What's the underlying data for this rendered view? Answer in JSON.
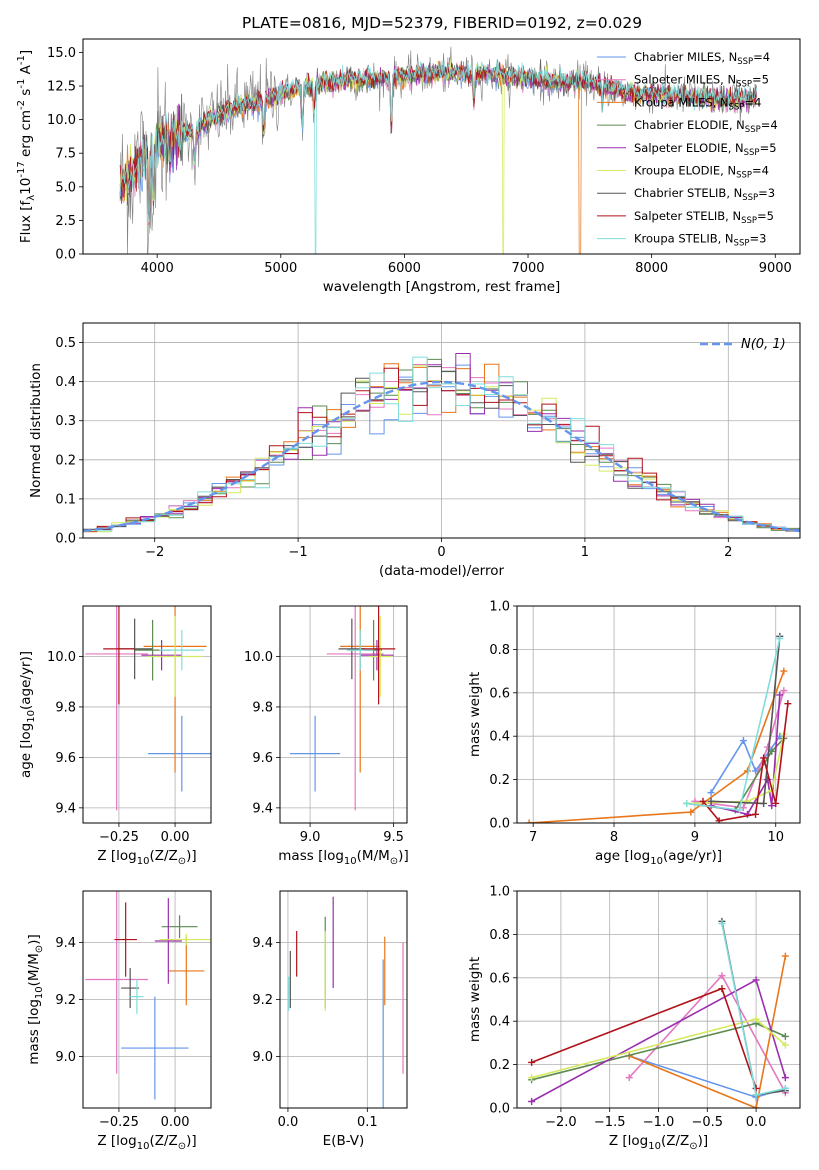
{
  "figure": {
    "title": "PLATE=0816, MJD=52379, FIBERID=0192, z=0.029",
    "models": [
      {
        "name": "Chabrier MILES, N$_{SSP}$=4",
        "label": "Chabrier MILES, N",
        "nssp": "=4",
        "color": "#6495ed"
      },
      {
        "name": "Salpeter MILES, N$_{SSP}$=5",
        "label": "Salpeter MILES, N",
        "nssp": "=5",
        "color": "#e377c2"
      },
      {
        "name": "Kroupa MILES, N$_{SSP}$=4",
        "label": "Kroupa MILES, N",
        "nssp": "=4",
        "color": "#e8761a"
      },
      {
        "name": "Chabrier ELODIE, N$_{SSP}$=4",
        "label": "Chabrier ELODIE, N",
        "nssp": "=4",
        "color": "#5c8a50"
      },
      {
        "name": "Salpeter ELODIE, N$_{SSP}$=5",
        "label": "Salpeter ELODIE, N",
        "nssp": "=5",
        "color": "#9b2fae"
      },
      {
        "name": "Kroupa ELODIE, N$_{SSP}$=4",
        "label": "Kroupa ELODIE, N",
        "nssp": "=4",
        "color": "#d4ea5e"
      },
      {
        "name": "Chabrier STELIB, N$_{SSP}$=3",
        "label": "Chabrier STELIB, N",
        "nssp": "=3",
        "color": "#555555"
      },
      {
        "name": "Salpeter STELIB, N$_{SSP}$=5",
        "label": "Salpeter STELIB, N",
        "nssp": "=5",
        "color": "#b0121a"
      },
      {
        "name": "Kroupa STELIB, N$_{SSP}$=3",
        "label": "Kroupa STELIB, N",
        "nssp": "=3",
        "color": "#7fdedd"
      }
    ],
    "nssp_subscript": "SSP"
  },
  "chart_data": [
    {
      "id": "spectrum",
      "type": "line",
      "title": "PLATE=0816, MJD=52379, FIBERID=0192, z=0.029",
      "xlabel": "wavelength [Angstrom, rest frame]",
      "ylabel": "Flux [f$_\\lambda$10$^{-17}$ erg cm$^{-2}$ s$^{-1}$ A$^{-1}$]",
      "xlim": [
        3400,
        9200
      ],
      "ylim": [
        0,
        16
      ],
      "xticks": [
        4000,
        5000,
        6000,
        7000,
        8000,
        9000
      ],
      "yticks": [
        0.0,
        2.5,
        5.0,
        7.5,
        10.0,
        12.5,
        15.0
      ],
      "grid": false,
      "legend": "top-right",
      "continuum": [
        [
          3700,
          4.8
        ],
        [
          3850,
          6.8
        ],
        [
          4000,
          8.2
        ],
        [
          4150,
          8.9
        ],
        [
          4300,
          9.1
        ],
        [
          4500,
          10.4
        ],
        [
          4700,
          11.1
        ],
        [
          4900,
          11.6
        ],
        [
          5100,
          12.2
        ],
        [
          5400,
          12.8
        ],
        [
          5700,
          13.0
        ],
        [
          6000,
          13.2
        ],
        [
          6300,
          13.5
        ],
        [
          6600,
          13.4
        ],
        [
          6900,
          13.2
        ],
        [
          7200,
          12.8
        ],
        [
          7500,
          12.8
        ],
        [
          7800,
          12.0
        ],
        [
          8000,
          11.9
        ],
        [
          8300,
          11.7
        ],
        [
          8600,
          11.5
        ],
        [
          8850,
          11.6
        ]
      ],
      "sharp_drops": [
        {
          "series": "Kroupa STELIB",
          "x": 5280,
          "y": 0
        },
        {
          "series": "Kroupa ELODIE",
          "x": 6800,
          "y": 0
        },
        {
          "series": "Kroupa MILES",
          "x": 7420,
          "y": 0
        }
      ]
    },
    {
      "id": "residuals",
      "type": "bar",
      "xlabel": "(data-model)/error",
      "ylabel": "Normed distribution",
      "xlim": [
        -2.5,
        2.5
      ],
      "ylim": [
        0,
        0.55
      ],
      "xticks": [
        -2,
        -1,
        0,
        1,
        2
      ],
      "yticks": [
        0.0,
        0.1,
        0.2,
        0.3,
        0.4,
        0.5
      ],
      "grid": true,
      "bin_width": 0.1,
      "legend": "top-right",
      "reference_curve": {
        "name": "$\\mathcal{N}(0,1)$",
        "label": "N(0, 1)",
        "color": "#6495ed",
        "style": "dashed"
      }
    },
    {
      "id": "age-vs-Z",
      "type": "scatter",
      "xlabel": "Z [log$_{10}$(Z/Z$_\\odot$)]",
      "ylabel": "age  [log$_{10}$(age/yr)]",
      "xlim": [
        -0.41,
        0.16
      ],
      "ylim": [
        9.34,
        10.2
      ],
      "xticks": [
        -0.25,
        0.0
      ],
      "yticks": [
        9.4,
        9.6,
        9.8,
        10.0
      ],
      "grid": true,
      "points": [
        {
          "model": "Chabrier MILES",
          "x": 0.03,
          "y": 9.615,
          "xerr": 0.15,
          "yerr": 0.15
        },
        {
          "model": "Salpeter MILES",
          "x": -0.26,
          "y": 10.01,
          "xerr": 0.14,
          "yerr": 0.62
        },
        {
          "model": "Kroupa MILES",
          "x": 0.0,
          "y": 10.04,
          "xerr": 0.14,
          "yerr": 0.5
        },
        {
          "model": "Chabrier ELODIE",
          "x": -0.1,
          "y": 10.025,
          "xerr": 0.08,
          "yerr": 0.12
        },
        {
          "model": "Salpeter ELODIE",
          "x": -0.06,
          "y": 10.005,
          "xerr": 0.09,
          "yerr": 0.06
        },
        {
          "model": "Kroupa ELODIE",
          "x": 0.0,
          "y": 10.0,
          "xerr": 0.12,
          "yerr": 0.16
        },
        {
          "model": "Chabrier STELIB",
          "x": -0.18,
          "y": 10.03,
          "xerr": 0.08,
          "yerr": 0.12
        },
        {
          "model": "Salpeter STELIB",
          "x": -0.25,
          "y": 10.03,
          "xerr": 0.07,
          "yerr": 0.22
        },
        {
          "model": "Kroupa STELIB",
          "x": 0.03,
          "y": 10.025,
          "xerr": 0.1,
          "yerr": 0.08
        }
      ]
    },
    {
      "id": "age-vs-mass",
      "type": "scatter",
      "xlabel": "mass [log$_{10}$(M/M$_\\odot$)]",
      "ylabel": "",
      "xlim": [
        8.82,
        9.58
      ],
      "ylim": [
        9.34,
        10.2
      ],
      "xticks": [
        9.0,
        9.5
      ],
      "yticks": [
        9.4,
        9.6,
        9.8,
        10.0
      ],
      "grid": true,
      "points": [
        {
          "model": "Chabrier MILES",
          "x": 9.03,
          "y": 9.615,
          "xerr": 0.15,
          "yerr": 0.15
        },
        {
          "model": "Salpeter MILES",
          "x": 9.27,
          "y": 10.01,
          "xerr": 0.17,
          "yerr": 0.62
        },
        {
          "model": "Kroupa MILES",
          "x": 9.3,
          "y": 10.04,
          "xerr": 0.12,
          "yerr": 0.5
        },
        {
          "model": "Chabrier ELODIE",
          "x": 9.38,
          "y": 10.025,
          "xerr": 0.05,
          "yerr": 0.12
        },
        {
          "model": "Salpeter ELODIE",
          "x": 9.4,
          "y": 10.005,
          "xerr": 0.1,
          "yerr": 0.06
        },
        {
          "model": "Kroupa ELODIE",
          "x": 9.42,
          "y": 10.0,
          "xerr": 0.07,
          "yerr": 0.16
        },
        {
          "model": "Chabrier STELIB",
          "x": 9.25,
          "y": 10.03,
          "xerr": 0.08,
          "yerr": 0.12
        },
        {
          "model": "Salpeter STELIB",
          "x": 9.41,
          "y": 10.03,
          "xerr": 0.1,
          "yerr": 0.22
        },
        {
          "model": "Kroupa STELIB",
          "x": 9.3,
          "y": 10.025,
          "xerr": 0.08,
          "yerr": 0.08
        }
      ]
    },
    {
      "id": "weight-vs-age",
      "type": "line",
      "xlabel": "age  [log$_{10}$(age/yr)]",
      "ylabel": "mass weight",
      "xlim": [
        6.8,
        10.3
      ],
      "ylim": [
        0,
        1
      ],
      "xticks": [
        7,
        8,
        9,
        10
      ],
      "yticks": [
        0.0,
        0.2,
        0.4,
        0.6,
        0.8,
        1.0
      ],
      "grid": true,
      "series": [
        {
          "model": "Chabrier MILES",
          "x": [
            9.2,
            9.6,
            9.75,
            10.05
          ],
          "y": [
            0.14,
            0.38,
            0.24,
            0.4
          ]
        },
        {
          "model": "Salpeter MILES",
          "x": [
            9.0,
            9.6,
            9.9,
            10.1
          ],
          "y": [
            0.1,
            0.07,
            0.35,
            0.61
          ]
        },
        {
          "model": "Kroupa MILES",
          "x": [
            6.95,
            8.95,
            9.65,
            10.1
          ],
          "y": [
            0.0,
            0.05,
            0.24,
            0.7
          ]
        },
        {
          "model": "Chabrier ELODIE",
          "x": [
            8.9,
            9.5,
            9.95,
            10.1
          ],
          "y": [
            0.09,
            0.06,
            0.33,
            0.39
          ]
        },
        {
          "model": "Salpeter ELODIE",
          "x": [
            9.2,
            9.65,
            9.9,
            9.95,
            10.05
          ],
          "y": [
            0.08,
            0.04,
            0.2,
            0.08,
            0.59
          ]
        },
        {
          "model": "Kroupa ELODIE",
          "x": [
            8.9,
            9.65,
            9.95,
            10.1
          ],
          "y": [
            0.09,
            0.1,
            0.15,
            0.41
          ]
        },
        {
          "model": "Chabrier STELIB",
          "x": [
            9.2,
            9.85,
            10.05
          ],
          "y": [
            0.1,
            0.09,
            0.86
          ]
        },
        {
          "model": "Salpeter STELIB",
          "x": [
            9.1,
            9.3,
            9.75,
            9.85,
            10.0,
            10.15
          ],
          "y": [
            0.1,
            0.01,
            0.04,
            0.3,
            0.09,
            0.55
          ]
        },
        {
          "model": "Kroupa STELIB",
          "x": [
            8.9,
            9.55,
            10.05
          ],
          "y": [
            0.09,
            0.06,
            0.85
          ]
        }
      ]
    },
    {
      "id": "mass-vs-Z",
      "type": "scatter",
      "xlabel": "Z [log$_{10}$(Z/Z$_\\odot$)]",
      "ylabel": "mass [log$_{10}$(M/M$_\\odot$)]",
      "xlim": [
        -0.41,
        0.16
      ],
      "ylim": [
        8.82,
        9.58
      ],
      "xticks": [
        -0.25,
        0.0
      ],
      "yticks": [
        9.0,
        9.2,
        9.4
      ],
      "grid": true,
      "points": [
        {
          "model": "Chabrier MILES",
          "x": -0.09,
          "y": 9.03,
          "xerr": 0.15,
          "yerr": 0.18
        },
        {
          "model": "Salpeter MILES",
          "x": -0.26,
          "y": 9.27,
          "xerr": 0.14,
          "yerr": 0.33
        },
        {
          "model": "Kroupa MILES",
          "x": 0.05,
          "y": 9.3,
          "xerr": 0.08,
          "yerr": 0.12
        },
        {
          "model": "Chabrier ELODIE",
          "x": 0.02,
          "y": 9.455,
          "xerr": 0.08,
          "yerr": 0.04
        },
        {
          "model": "Salpeter ELODIE",
          "x": -0.03,
          "y": 9.405,
          "xerr": 0.06,
          "yerr": 0.15
        },
        {
          "model": "Kroupa ELODIE",
          "x": 0.05,
          "y": 9.41,
          "xerr": 0.12,
          "yerr": 0.02
        },
        {
          "model": "Chabrier STELIB",
          "x": -0.2,
          "y": 9.24,
          "xerr": 0.04,
          "yerr": 0.07
        },
        {
          "model": "Salpeter STELIB",
          "x": -0.22,
          "y": 9.41,
          "xerr": 0.05,
          "yerr": 0.13
        },
        {
          "model": "Kroupa STELIB",
          "x": -0.17,
          "y": 9.21,
          "xerr": 0.03,
          "yerr": 0.06
        }
      ]
    },
    {
      "id": "mass-vs-EBV",
      "type": "scatter",
      "xlabel": "E(B-V)",
      "ylabel": "",
      "xlim": [
        -0.01,
        0.15
      ],
      "ylim": [
        8.82,
        9.58
      ],
      "xticks": [
        0.0,
        0.1
      ],
      "yticks": [
        9.0,
        9.2,
        9.4
      ],
      "grid": true,
      "points": [
        {
          "model": "Chabrier MILES",
          "x": 0.12,
          "y": 9.03,
          "yerr": 0.31
        },
        {
          "model": "Salpeter MILES",
          "x": 0.145,
          "y": 9.17,
          "yerr": 0.23
        },
        {
          "model": "Kroupa MILES",
          "x": 0.122,
          "y": 9.3,
          "yerr": 0.12
        },
        {
          "model": "Chabrier ELODIE",
          "x": 0.047,
          "y": 9.33,
          "yerr": 0.16
        },
        {
          "model": "Salpeter ELODIE",
          "x": 0.057,
          "y": 9.4,
          "yerr": 0.16
        },
        {
          "model": "Kroupa ELODIE",
          "x": 0.047,
          "y": 9.3,
          "yerr": 0.14
        },
        {
          "model": "Chabrier STELIB",
          "x": 0.003,
          "y": 9.27,
          "yerr": 0.1
        },
        {
          "model": "Salpeter STELIB",
          "x": 0.011,
          "y": 9.36,
          "yerr": 0.08
        },
        {
          "model": "Kroupa STELIB",
          "x": 0.001,
          "y": 9.22,
          "yerr": 0.06
        }
      ]
    },
    {
      "id": "weight-vs-Z",
      "type": "line",
      "xlabel": "Z [log$_{10}$(Z/Z$_\\odot$)]",
      "ylabel": "mass weight",
      "xlim": [
        -2.45,
        0.45
      ],
      "ylim": [
        0,
        1
      ],
      "xticks": [
        -2.0,
        -1.5,
        -1.0,
        -0.5,
        0.0
      ],
      "yticks": [
        0.0,
        0.2,
        0.4,
        0.6,
        0.8,
        1.0
      ],
      "grid": true,
      "series": [
        {
          "model": "Chabrier MILES",
          "x": [
            -1.3,
            0.0,
            0.3
          ],
          "y": [
            0.24,
            0.05,
            0.09
          ]
        },
        {
          "model": "Salpeter MILES",
          "x": [
            -1.3,
            -0.35,
            0.3
          ],
          "y": [
            0.14,
            0.61,
            0.07
          ]
        },
        {
          "model": "Kroupa MILES",
          "x": [
            -1.3,
            0.0,
            0.3
          ],
          "y": [
            0.24,
            0.0,
            0.7
          ]
        },
        {
          "model": "Chabrier ELODIE",
          "x": [
            -2.3,
            0.0,
            0.3
          ],
          "y": [
            0.13,
            0.39,
            0.33
          ]
        },
        {
          "model": "Salpeter ELODIE",
          "x": [
            -2.3,
            0.0,
            0.3
          ],
          "y": [
            0.03,
            0.59,
            0.14
          ]
        },
        {
          "model": "Kroupa ELODIE",
          "x": [
            -2.3,
            0.0,
            0.3
          ],
          "y": [
            0.14,
            0.41,
            0.29
          ]
        },
        {
          "model": "Chabrier STELIB",
          "x": [
            -0.35,
            0.0,
            0.3
          ],
          "y": [
            0.86,
            0.06,
            0.08
          ]
        },
        {
          "model": "Salpeter STELIB",
          "x": [
            -2.3,
            -0.35,
            0.0
          ],
          "y": [
            0.21,
            0.55,
            0.09
          ]
        },
        {
          "model": "Kroupa STELIB",
          "x": [
            -0.35,
            0.0,
            0.3
          ],
          "y": [
            0.85,
            0.06,
            0.09
          ]
        }
      ]
    }
  ]
}
